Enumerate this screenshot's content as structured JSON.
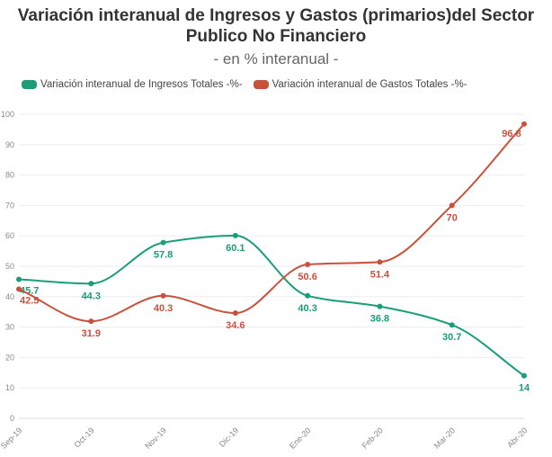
{
  "chart_data": {
    "type": "line",
    "title": "Variación interanual de Ingresos y Gastos (primarios)del Sector Publico No Financiero",
    "subtitle": "- en % interanual -",
    "categories": [
      "Sep-19",
      "Oct-19",
      "Nov-19",
      "Dic-19",
      "Ene-20",
      "Feb-20",
      "Mar-20",
      "Abr-20"
    ],
    "ylim": [
      0,
      100
    ],
    "yticks": [
      0,
      10,
      20,
      30,
      40,
      50,
      60,
      70,
      80,
      90,
      100
    ],
    "grid": true,
    "legend_position": "top-left",
    "series": [
      {
        "name": "Variación interanual de Ingresos Totales -%-",
        "color": "#1a9e77",
        "values": [
          45.7,
          44.3,
          57.8,
          60.1,
          40.3,
          36.8,
          30.7,
          14
        ]
      },
      {
        "name": "Variación interanual de Gastos Totales -%-",
        "color": "#c9513c",
        "values": [
          42.5,
          31.9,
          40.3,
          34.6,
          50.6,
          51.4,
          70,
          96.8
        ]
      }
    ]
  }
}
